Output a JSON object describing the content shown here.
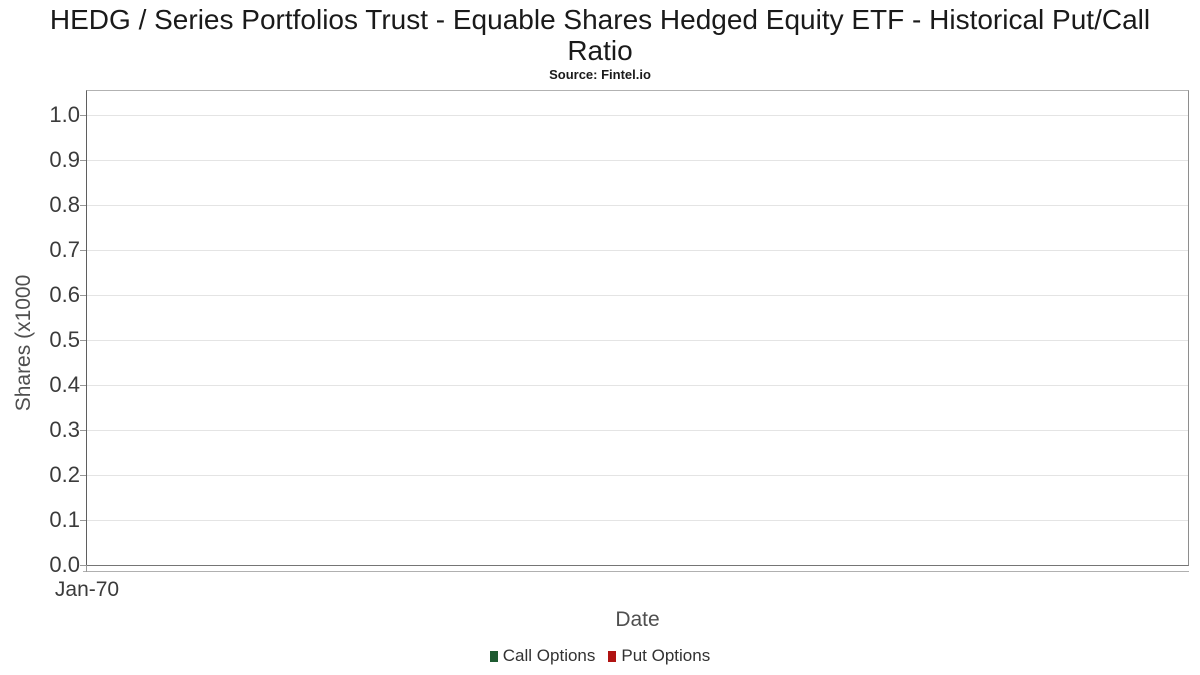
{
  "chart_data": {
    "type": "line",
    "title": "HEDG / Series Portfolios Trust - Equable Shares Hedged Equity ETF - Historical Put/Call Ratio",
    "subtitle": "Source: Fintel.io",
    "xlabel": "Date",
    "ylabel": "Shares (x1000",
    "ylim": [
      0.0,
      1.0
    ],
    "ytick_step": 0.1,
    "yticks": [
      "1.0",
      "0.9",
      "0.8",
      "0.7",
      "0.6",
      "0.5",
      "0.4",
      "0.3",
      "0.2",
      "0.1",
      "0.0"
    ],
    "xticks": [
      "Jan-70"
    ],
    "grid": "horizontal",
    "legend_position": "bottom-center",
    "plot_is_empty": true,
    "series": [
      {
        "name": "Call Options",
        "color": "#1e5b31",
        "values": []
      },
      {
        "name": "Put Options",
        "color": "#b01312",
        "values": []
      }
    ]
  }
}
